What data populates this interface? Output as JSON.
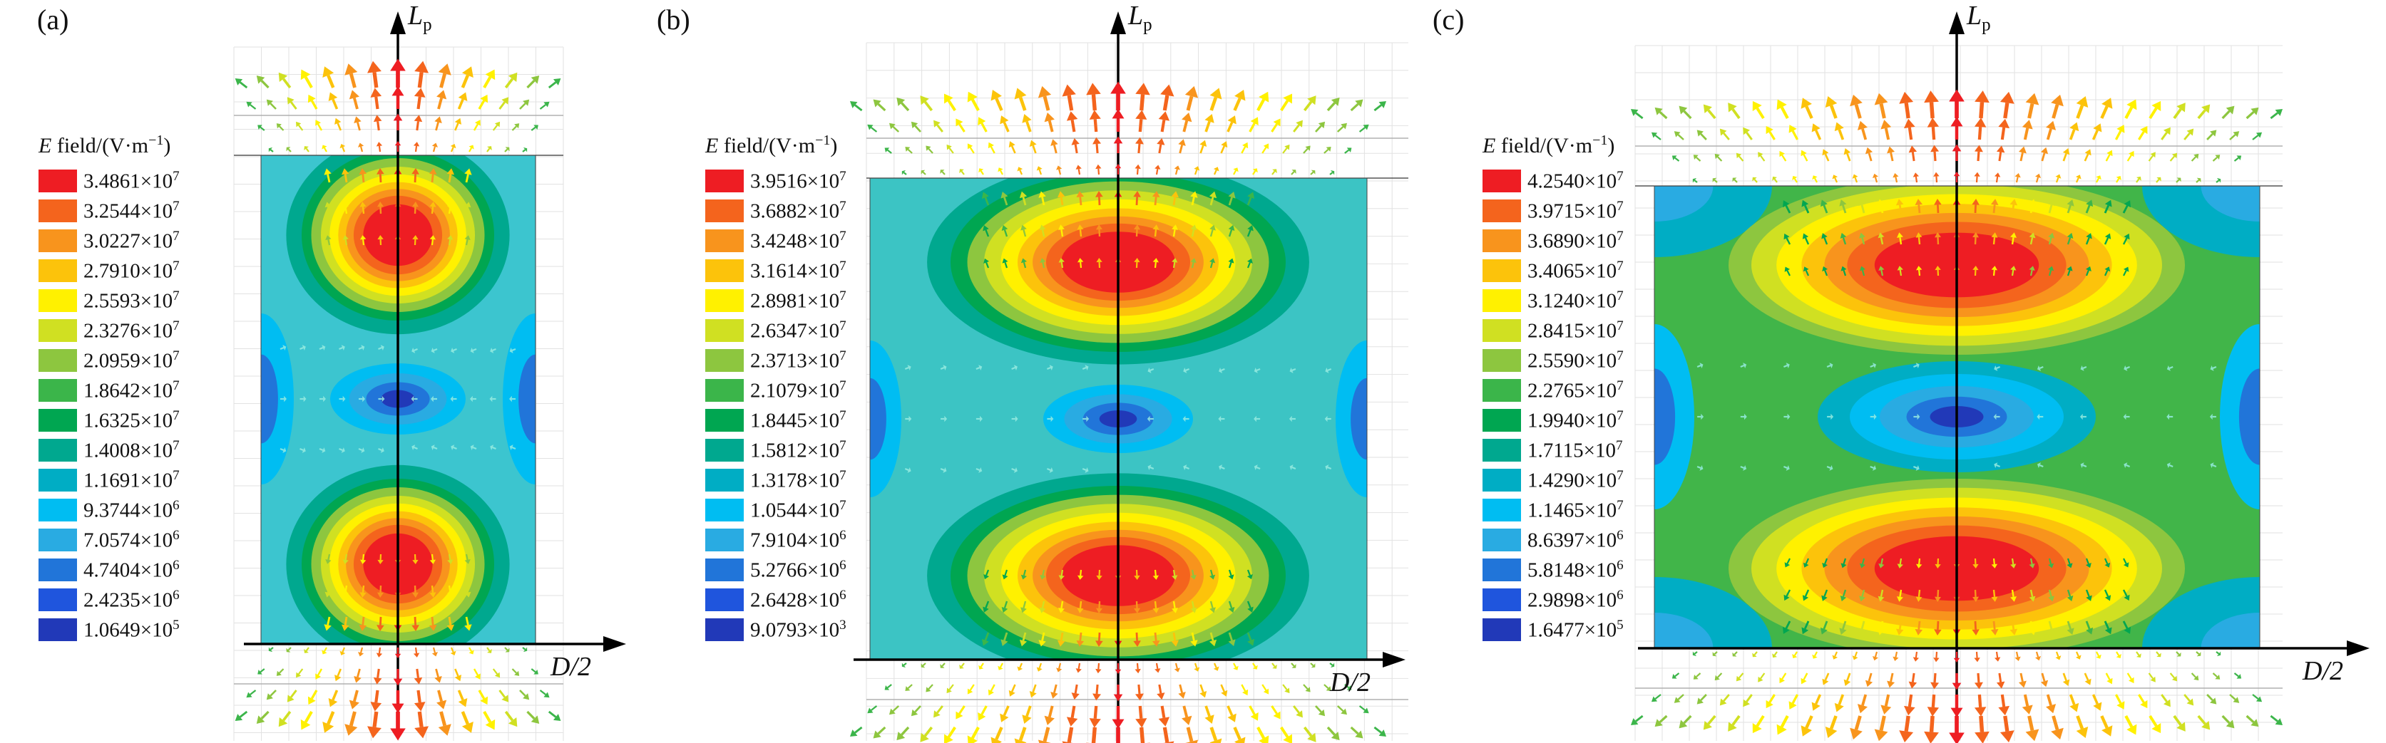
{
  "colormap": [
    "#ee1d23",
    "#f4641d",
    "#f8941d",
    "#fcc30b",
    "#fff100",
    "#d0e022",
    "#8dc63f",
    "#3bb54a",
    "#00a651",
    "#00a88f",
    "#00adc4",
    "#00bdf2",
    "#29abe2",
    "#2175d9",
    "#1f55dd",
    "#2139b8"
  ],
  "chart_data": [
    {
      "type": "heatmap",
      "panel_label": "(a)",
      "legend_title": "E field/(V·m⁻¹)",
      "legend_title_parts": {
        "symbol": "E",
        "text": " field/(V·m",
        "sup": "−1",
        "close": ")"
      },
      "legend_position": "left",
      "grid": true,
      "xlabel": "D/2",
      "ylabel": "Lp",
      "ylabel_parts": {
        "main": "L",
        "sub": "p"
      },
      "base_color": "#3cc5cf",
      "colorbar": [
        {
          "m": "3.4861",
          "e": "7"
        },
        {
          "m": "3.2544",
          "e": "7"
        },
        {
          "m": "3.0227",
          "e": "7"
        },
        {
          "m": "2.7910",
          "e": "7"
        },
        {
          "m": "2.5593",
          "e": "7"
        },
        {
          "m": "2.3276",
          "e": "7"
        },
        {
          "m": "2.0959",
          "e": "7"
        },
        {
          "m": "1.8642",
          "e": "7"
        },
        {
          "m": "1.6325",
          "e": "7"
        },
        {
          "m": "1.4008",
          "e": "7"
        },
        {
          "m": "1.1691",
          "e": "7"
        },
        {
          "m": "9.3744",
          "e": "6"
        },
        {
          "m": "7.0574",
          "e": "6"
        },
        {
          "m": "4.7404",
          "e": "6"
        },
        {
          "m": "2.4235",
          "e": "6"
        },
        {
          "m": "1.0649",
          "e": "5"
        }
      ]
    },
    {
      "type": "heatmap",
      "panel_label": "(b)",
      "legend_title": "E field/(V·m⁻¹)",
      "legend_title_parts": {
        "symbol": "E",
        "text": " field/(V·m",
        "sup": "−1",
        "close": ")"
      },
      "legend_position": "left",
      "grid": true,
      "xlabel": "D/2",
      "ylabel": "Lp",
      "ylabel_parts": {
        "main": "L",
        "sub": "p"
      },
      "base_color": "#3cc4c4",
      "colorbar": [
        {
          "m": "3.9516",
          "e": "7"
        },
        {
          "m": "3.6882",
          "e": "7"
        },
        {
          "m": "3.4248",
          "e": "7"
        },
        {
          "m": "3.1614",
          "e": "7"
        },
        {
          "m": "2.8981",
          "e": "7"
        },
        {
          "m": "2.6347",
          "e": "7"
        },
        {
          "m": "2.3713",
          "e": "7"
        },
        {
          "m": "2.1079",
          "e": "7"
        },
        {
          "m": "1.8445",
          "e": "7"
        },
        {
          "m": "1.5812",
          "e": "7"
        },
        {
          "m": "1.3178",
          "e": "7"
        },
        {
          "m": "1.0544",
          "e": "7"
        },
        {
          "m": "7.9104",
          "e": "6"
        },
        {
          "m": "5.2766",
          "e": "6"
        },
        {
          "m": "2.6428",
          "e": "6"
        },
        {
          "m": "9.0793",
          "e": "3"
        }
      ]
    },
    {
      "type": "heatmap",
      "panel_label": "(c)",
      "legend_title": "E field/(V·m⁻¹)",
      "legend_title_parts": {
        "symbol": "E",
        "text": " field/(V·m",
        "sup": "−1",
        "close": ")"
      },
      "legend_position": "left",
      "grid": true,
      "xlabel": "D/2",
      "ylabel": "Lp",
      "ylabel_parts": {
        "main": "L",
        "sub": "p"
      },
      "base_color": "#41b549",
      "colorbar": [
        {
          "m": "4.2540",
          "e": "7"
        },
        {
          "m": "3.9715",
          "e": "7"
        },
        {
          "m": "3.6890",
          "e": "7"
        },
        {
          "m": "3.4065",
          "e": "7"
        },
        {
          "m": "3.1240",
          "e": "7"
        },
        {
          "m": "2.8415",
          "e": "7"
        },
        {
          "m": "2.5590",
          "e": "7"
        },
        {
          "m": "2.2765",
          "e": "7"
        },
        {
          "m": "1.9940",
          "e": "7"
        },
        {
          "m": "1.7115",
          "e": "7"
        },
        {
          "m": "1.4290",
          "e": "7"
        },
        {
          "m": "1.1465",
          "e": "7"
        },
        {
          "m": "8.6397",
          "e": "6"
        },
        {
          "m": "5.8148",
          "e": "6"
        },
        {
          "m": "2.9898",
          "e": "6"
        },
        {
          "m": "1.6477",
          "e": "5"
        }
      ]
    }
  ]
}
